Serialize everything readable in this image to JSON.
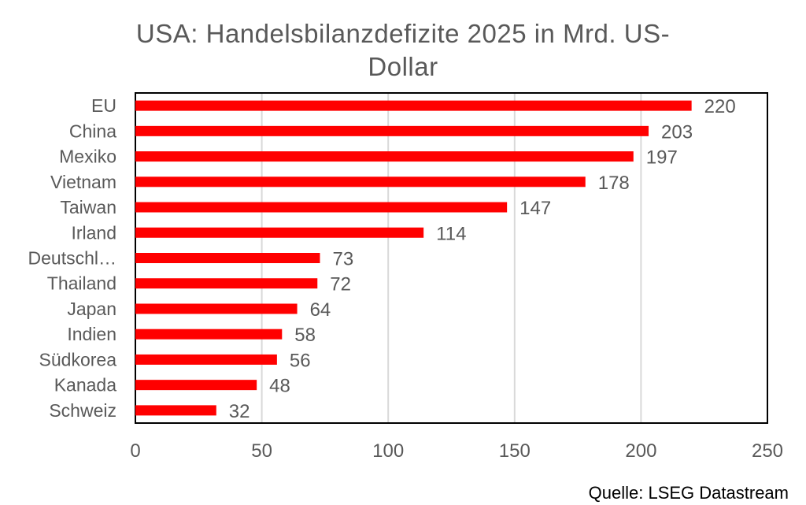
{
  "chart_data": {
    "type": "bar",
    "orientation": "horizontal",
    "title_lines": [
      "USA: Handelsbilanzdefizite 2025 in Mrd. US-",
      "Dollar"
    ],
    "categories": [
      "EU",
      "China",
      "Mexiko",
      "Vietnam",
      "Taiwan",
      "Irland",
      "Deutschl…",
      "Thailand",
      "Japan",
      "Indien",
      "Südkorea",
      "Kanada",
      "Schweiz"
    ],
    "values": [
      220,
      203,
      197,
      178,
      147,
      114,
      73,
      72,
      64,
      58,
      56,
      48,
      32
    ],
    "data_labels": [
      "220",
      "203",
      "197",
      "178",
      "147",
      "114",
      "73",
      "72",
      "64",
      "58",
      "56",
      "48",
      "32"
    ],
    "x_ticks": [
      0,
      50,
      100,
      150,
      200,
      250
    ],
    "x_tick_labels": [
      "0",
      "50",
      "100",
      "150",
      "200",
      "250"
    ],
    "xlim": [
      0,
      250
    ],
    "xlabel": "",
    "ylabel": "",
    "grid": "vertical",
    "legend": "none",
    "bar_color": "#ff0000",
    "grid_color": "#d9d9d9",
    "axis_color": "#000000",
    "text_color": "#595959"
  },
  "source": "Quelle: LSEG Datastream"
}
